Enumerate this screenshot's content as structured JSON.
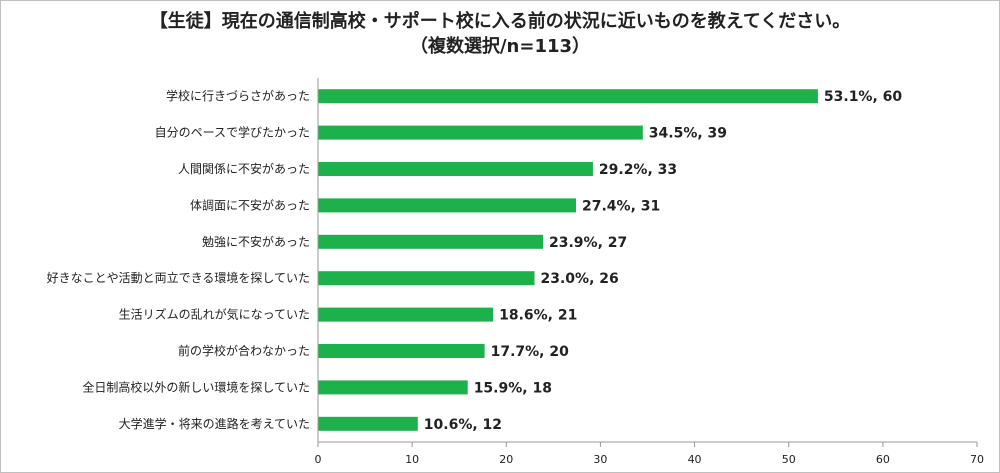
{
  "chart_data": {
    "type": "bar",
    "orientation": "horizontal",
    "title": "【生徒】現在の通信制高校・サポート校に入る前の状況に近いものを教えてください。",
    "subtitle": "（複数選択/n=113）",
    "categories": [
      "学校に行きづらさがあった",
      "自分のペースで学びたかった",
      "人間関係に不安があった",
      "体調面に不安があった",
      "勉強に不安があった",
      "好きなことや活動と両立できる環境を探していた",
      "生活リズムの乱れが気になっていた",
      "前の学校が合わなかった",
      "全日制高校以外の新しい環境を探していた",
      "大学進学・将来の進路を考えていた"
    ],
    "values": [
      53.1,
      34.5,
      29.2,
      27.4,
      23.9,
      23.0,
      18.6,
      17.7,
      15.9,
      10.6
    ],
    "data_labels": [
      "53.1%, 60",
      "34.5%, 39",
      "29.2%, 33",
      "27.4%, 31",
      "23.9%, 27",
      "23.0%, 26",
      "18.6%, 21",
      "17.7%, 20",
      "15.9%, 18",
      "10.6%, 12"
    ],
    "xlim": [
      0,
      70
    ],
    "xticks": [
      "0",
      "10",
      "20",
      "30",
      "40",
      "50",
      "60",
      "70"
    ],
    "bar_color": "#1db14b",
    "axis_color": "#999999",
    "grid": false,
    "legend": "none"
  }
}
